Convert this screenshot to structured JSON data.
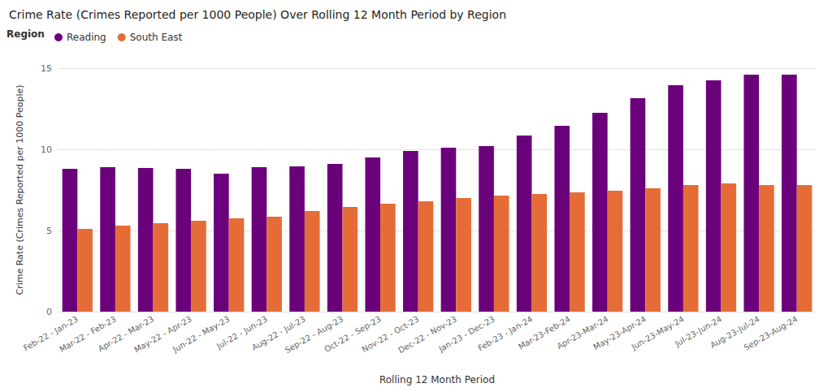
{
  "chart_data": {
    "type": "bar",
    "title": "Crime Rate (Crimes Reported per 1000 People) Over Rolling 12 Month Period by Region",
    "x_label": "Rolling 12 Month Period",
    "y_label": "Crime Rate (Crimes Reported per 1000 People)",
    "legend_title": "Region",
    "legend": "top-left",
    "grid": true,
    "categories": [
      "Feb-22 - Jan-23",
      "Mar-22 - Feb-23",
      "Apr-22 - Mar-23",
      "May-22 - Apr-23",
      "Jun-22 - May-23",
      "Jul-22 - Jun-23",
      "Aug-22 - Jul-23",
      "Sep-22 - Aug-23",
      "Oct-22 - Sep-23",
      "Nov-22 - Oct-23",
      "Dec-22 - Nov-23",
      "Jan-23 - Dec-23",
      "Feb-23 - Jan-24",
      "Mar-23-Feb-24",
      "Apr-23-Mar-24",
      "May-23-Apr-24",
      "Jun-23-May-24",
      "Jul-23-Jun-24",
      "Aug-23-Jul-24",
      "Sep-23-Aug-24"
    ],
    "series": [
      {
        "name": "Reading",
        "color": "#6b007b",
        "values": [
          8.8,
          8.9,
          8.85,
          8.8,
          8.5,
          8.9,
          8.95,
          9.1,
          9.5,
          9.9,
          10.1,
          10.2,
          10.85,
          11.45,
          12.25,
          13.15,
          13.95,
          14.25,
          14.6,
          14.6
        ]
      },
      {
        "name": "South East",
        "color": "#e66c37",
        "values": [
          5.1,
          5.3,
          5.45,
          5.6,
          5.75,
          5.85,
          6.2,
          6.45,
          6.65,
          6.8,
          7.0,
          7.15,
          7.25,
          7.35,
          7.45,
          7.6,
          7.8,
          7.9,
          7.8,
          7.8
        ]
      }
    ],
    "ylim": [
      0,
      15
    ],
    "yticks": [
      0,
      5,
      10,
      15
    ]
  }
}
